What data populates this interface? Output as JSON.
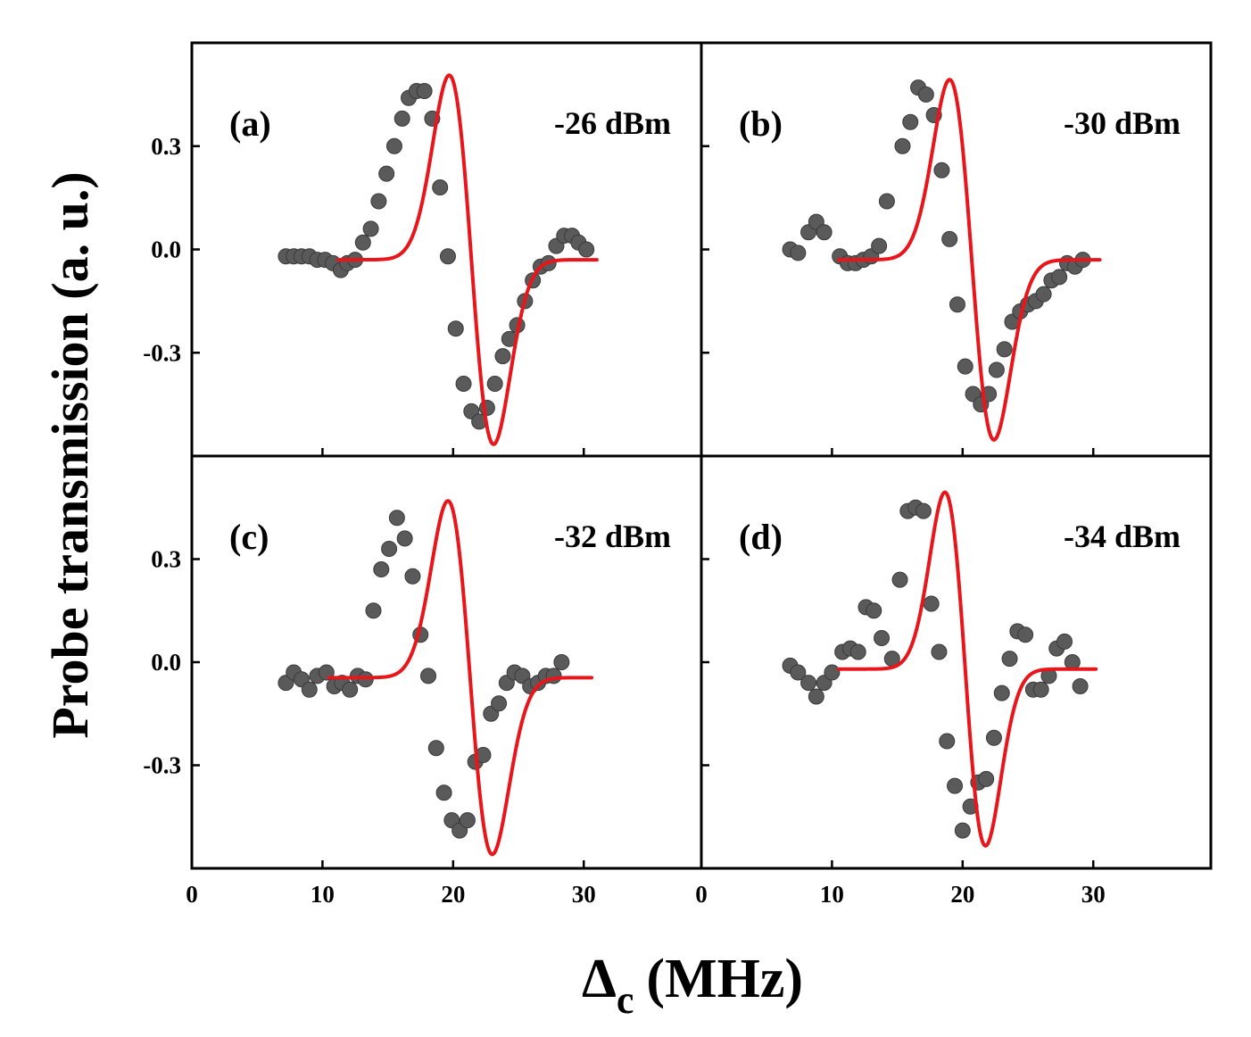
{
  "figure": {
    "ylabel": "Probe transmission (a. u.)",
    "xlabel_symbol": "Δ",
    "xlabel_subscript": "c",
    "xlabel_unit": "(MHz)",
    "colors": {
      "dots": "#5a5a5a",
      "fit": "#e8161b",
      "axes": "#000000"
    }
  },
  "chart_data": [
    {
      "type": "scatter",
      "panel": "(a)",
      "power": "-26 dBm",
      "xlim": [
        0,
        39
      ],
      "ylim": [
        -0.6,
        0.6
      ],
      "xticks": [
        0,
        10,
        20,
        30
      ],
      "yticks": [
        0.3,
        0.0,
        -0.3
      ],
      "ytick_labels": [
        "0.3",
        "0.0",
        "-0.3"
      ],
      "series": [
        {
          "name": "data",
          "x": [
            7.2,
            7.8,
            8.4,
            9.0,
            9.6,
            10.2,
            10.8,
            11.4,
            11.9,
            12.5,
            13.1,
            13.7,
            14.3,
            14.9,
            15.5,
            16.1,
            16.6,
            17.2,
            17.8,
            18.4,
            19.0,
            19.6,
            20.2,
            20.8,
            21.4,
            22.0,
            22.6,
            23.2,
            23.8,
            24.3,
            24.9,
            25.5,
            26.1,
            26.7,
            27.3,
            27.9,
            28.5,
            29.1,
            29.6,
            30.2,
            30.8,
            31.4,
            32.0,
            32.6,
            33.2
          ],
          "y": [
            -0.02,
            -0.02,
            -0.02,
            -0.02,
            -0.03,
            -0.03,
            -0.04,
            -0.06,
            -0.04,
            -0.03,
            0.02,
            0.06,
            0.14,
            0.22,
            0.3,
            0.38,
            0.44,
            0.46,
            0.46,
            0.38,
            0.18,
            -0.02,
            -0.23,
            -0.39,
            -0.47,
            -0.5,
            -0.46,
            -0.39,
            -0.31,
            -0.26,
            -0.22,
            -0.15,
            -0.09,
            -0.05,
            -0.04,
            0.01,
            0.04,
            0.04,
            0.02,
            0.0,
            null,
            null,
            null,
            null,
            null
          ]
        },
        {
          "name": "fit",
          "model": "dispersive",
          "x0": 21.4,
          "A": 1.25,
          "w": 2.4,
          "c": -0.03,
          "x_start": 11.2,
          "x_end": 31.0
        }
      ]
    },
    {
      "type": "scatter",
      "panel": "(b)",
      "power": "-30 dBm",
      "xlim": [
        0,
        39
      ],
      "ylim": [
        -0.6,
        0.6
      ],
      "xticks": [
        0,
        10,
        20,
        30
      ],
      "yticks": [
        0.3,
        0.0,
        -0.3
      ],
      "series": [
        {
          "name": "data",
          "x": [
            6.8,
            7.4,
            8.0,
            8.7,
            9.3,
            10.0,
            10.6,
            11.2,
            11.8,
            12.4,
            13.0,
            13.6,
            14.3,
            14.9,
            15.5,
            16.1,
            16.7,
            17.3,
            17.9,
            18.5,
            19.1,
            19.7,
            20.3,
            20.9,
            21.5,
            22.1,
            22.7,
            23.3,
            23.9,
            24.5,
            25.1,
            25.7,
            26.3,
            26.9,
            27.5,
            28.1,
            28.7,
            29.3,
            29.9,
            30.5,
            31.1,
            31.7,
            32.3,
            32.9
          ],
          "y": [
            0.0,
            -0.01,
            0.05,
            0.08,
            0.05,
            -0.02,
            -0.04,
            -0.04,
            -0.03,
            -0.02,
            0.01,
            0.14,
            0.3,
            0.37,
            0.47,
            0.45,
            0.39,
            0.23,
            0.03,
            -0.16,
            -0.34,
            -0.42,
            -0.45,
            -0.42,
            -0.35,
            -0.29,
            -0.21,
            -0.18,
            -0.16,
            -0.15,
            -0.13,
            -0.09,
            -0.08,
            -0.04,
            -0.05,
            -0.03,
            null,
            null,
            null,
            null,
            null,
            null,
            null,
            null
          ],
          "x_fix": [
            6.8,
            7.4,
            8.2,
            8.8,
            9.4,
            10.6,
            11.2,
            11.8,
            12.4,
            13.0,
            13.6,
            14.2,
            15.4,
            16.0,
            16.6,
            17.2,
            17.8,
            18.4,
            19.0,
            19.6,
            20.2,
            20.8,
            21.4,
            22.0,
            22.6,
            23.2,
            23.8,
            24.4,
            25.0,
            25.6,
            26.2,
            26.8,
            27.4,
            28.0,
            28.6,
            29.2,
            29.8,
            30.4,
            31.0,
            31.6,
            32.2,
            32.8
          ]
        },
        {
          "name": "fit",
          "model": "dispersive",
          "x0": 20.7,
          "A": 1.22,
          "w": 2.4,
          "c": -0.03,
          "x_start": 10.5,
          "x_end": 30.5
        }
      ]
    },
    {
      "type": "scatter",
      "panel": "(c)",
      "power": "-32 dBm",
      "xlim": [
        0,
        39
      ],
      "ylim": [
        -0.6,
        0.6
      ],
      "xticks": [
        0,
        10,
        20,
        30
      ],
      "yticks": [
        0.3,
        0.0,
        -0.3
      ],
      "ytick_labels": [
        "0.3",
        "0.0",
        "-0.3"
      ],
      "series": [
        {
          "name": "data",
          "x": [
            7.2,
            7.8,
            8.4,
            9.0,
            9.6,
            10.3,
            10.9,
            11.5,
            12.1,
            12.7,
            13.3,
            13.9,
            14.5,
            15.1,
            15.7,
            16.3,
            16.9,
            17.5,
            18.1,
            18.7,
            19.3,
            19.9,
            20.5,
            21.1,
            21.7,
            22.3,
            22.9,
            23.5,
            24.1,
            24.7,
            25.3,
            25.9,
            26.5,
            27.1,
            27.7,
            28.3,
            28.9,
            29.5,
            30.1,
            30.7,
            31.3,
            31.9,
            32.5,
            33.1
          ],
          "y": [
            -0.06,
            -0.03,
            -0.05,
            -0.08,
            -0.04,
            -0.03,
            -0.07,
            -0.06,
            -0.08,
            -0.04,
            -0.05,
            0.15,
            0.27,
            0.33,
            0.42,
            0.36,
            0.25,
            0.08,
            -0.04,
            -0.25,
            -0.38,
            -0.46,
            -0.49,
            -0.46,
            -0.29,
            -0.27,
            -0.15,
            -0.12,
            -0.06,
            -0.03,
            -0.04,
            -0.07,
            -0.06,
            -0.04,
            -0.04,
            0.0,
            null,
            null,
            null,
            null,
            null,
            null,
            null,
            null
          ]
        },
        {
          "name": "fit",
          "model": "dispersive",
          "x0": 21.3,
          "A": 1.2,
          "w": 2.4,
          "c": -0.045,
          "x_start": 10.5,
          "x_end": 30.6
        }
      ]
    },
    {
      "type": "scatter",
      "panel": "(d)",
      "power": "-34 dBm",
      "xlim": [
        0,
        39
      ],
      "ylim": [
        -0.6,
        0.6
      ],
      "xticks": [
        0,
        10,
        20,
        30
      ],
      "yticks": [
        0.3,
        0.0,
        -0.3
      ],
      "series": [
        {
          "name": "data",
          "x": [
            6.8,
            7.4,
            8.2,
            8.8,
            9.4,
            10.0,
            10.8,
            11.4,
            12.0,
            12.6,
            13.2,
            13.8,
            14.6,
            15.2,
            15.8,
            16.4,
            17.0,
            17.6,
            18.2,
            18.8,
            19.4,
            20.0,
            20.6,
            21.2,
            21.8,
            22.4,
            23.0,
            23.6,
            24.2,
            24.8,
            25.4,
            26.0,
            26.6,
            27.2,
            27.8,
            28.4,
            29.0,
            29.6,
            30.2,
            30.8,
            31.4,
            32.0,
            32.6
          ],
          "y": [
            -0.01,
            -0.03,
            -0.06,
            -0.1,
            -0.06,
            -0.03,
            0.03,
            0.04,
            0.03,
            0.16,
            0.15,
            0.07,
            0.01,
            0.24,
            0.44,
            0.45,
            0.44,
            0.17,
            0.03,
            -0.23,
            -0.36,
            -0.49,
            -0.42,
            -0.35,
            -0.34,
            -0.22,
            -0.09,
            0.01,
            0.09,
            0.08,
            -0.08,
            -0.08,
            -0.04,
            0.04,
            0.06,
            0.0,
            -0.07,
            null,
            null,
            null,
            null,
            null,
            null
          ]
        },
        {
          "name": "fit",
          "model": "dispersive",
          "x0": 20.2,
          "A": 1.2,
          "w": 2.2,
          "c": -0.02,
          "x_start": 10.5,
          "x_end": 30.2
        }
      ]
    }
  ]
}
